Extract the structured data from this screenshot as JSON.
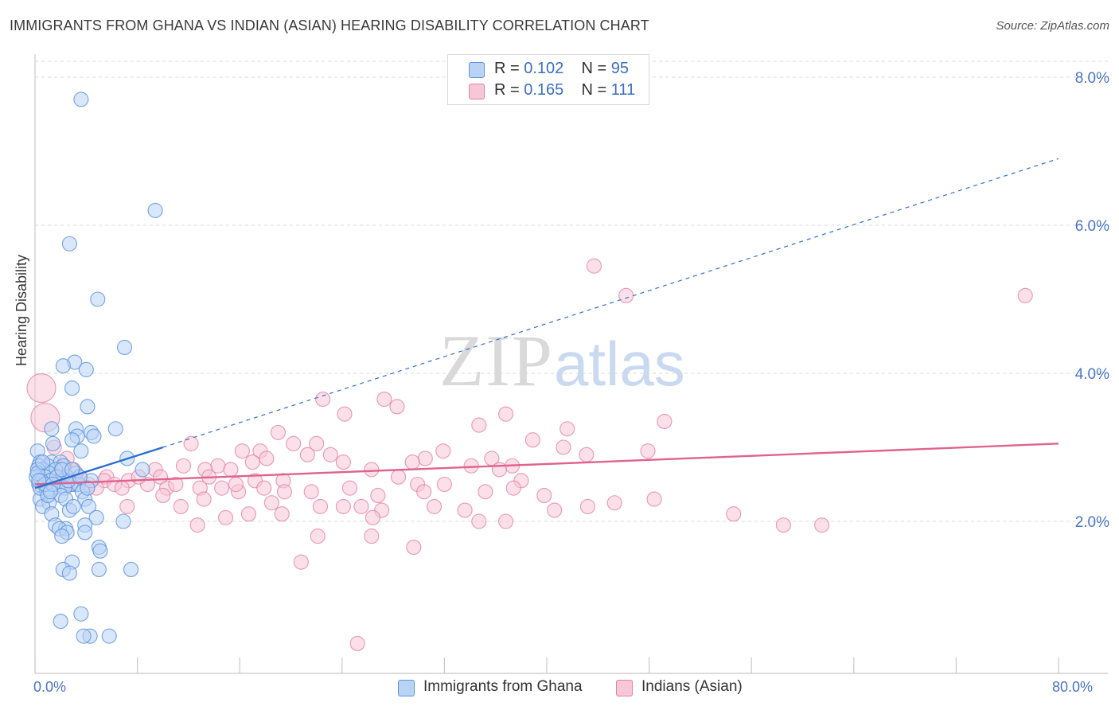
{
  "title": "IMMIGRANTS FROM GHANA VS INDIAN (ASIAN) HEARING DISABILITY CORRELATION CHART",
  "source": "Source: ZipAtlas.com",
  "watermark": {
    "zip": "ZIP",
    "atlas": "atlas"
  },
  "legend_top": [
    {
      "r_label": "R =",
      "r_value": "0.102",
      "n_label": "N =",
      "n_value": "95"
    },
    {
      "r_label": "R =",
      "r_value": "0.165",
      "n_label": "N =",
      "n_value": "111"
    }
  ],
  "colors": {
    "blue_fill": "#b9d3f5",
    "blue_stroke": "#5d93de",
    "pink_fill": "#f7c6d7",
    "pink_stroke": "#e47fa3",
    "blue_line": "#2f6fcf",
    "pink_line": "#e0628f",
    "accent_text": "#4a74c4"
  },
  "chart_data": {
    "type": "scatter",
    "title": "IMMIGRANTS FROM GHANA VS INDIAN (ASIAN) HEARING DISABILITY CORRELATION CHART",
    "xlabel": "",
    "ylabel": "Hearing Disability",
    "xlim": [
      0,
      80
    ],
    "ylim": [
      0,
      8.3
    ],
    "x_tick_labels": [
      "0.0%",
      "80.0%"
    ],
    "y_ticks": [
      2,
      4,
      6,
      8
    ],
    "y_tick_labels": [
      "2.0%",
      "4.0%",
      "6.0%",
      "8.0%"
    ],
    "grid": true,
    "legend_position": "top-center",
    "series": [
      {
        "name": "Immigrants from Ghana",
        "r": 0.102,
        "n": 95,
        "trend_solid": [
          [
            0,
            2.45
          ],
          [
            10,
            3.0
          ]
        ],
        "trend_dashed": [
          [
            10,
            3.0
          ],
          [
            80,
            6.9
          ]
        ],
        "points": [
          [
            3.6,
            7.7
          ],
          [
            9.4,
            6.2
          ],
          [
            2.7,
            5.75
          ],
          [
            4.9,
            5.0
          ],
          [
            7.0,
            4.35
          ],
          [
            3.1,
            4.15
          ],
          [
            2.2,
            4.1
          ],
          [
            4.0,
            4.05
          ],
          [
            2.9,
            3.8
          ],
          [
            4.1,
            3.55
          ],
          [
            6.3,
            3.25
          ],
          [
            3.2,
            3.25
          ],
          [
            1.3,
            3.25
          ],
          [
            4.4,
            3.2
          ],
          [
            3.3,
            3.15
          ],
          [
            4.6,
            3.15
          ],
          [
            2.9,
            3.1
          ],
          [
            1.4,
            3.05
          ],
          [
            0.2,
            2.95
          ],
          [
            3.6,
            2.95
          ],
          [
            7.2,
            2.85
          ],
          [
            0.4,
            2.8
          ],
          [
            1.3,
            2.8
          ],
          [
            2.0,
            2.8
          ],
          [
            1.0,
            2.75
          ],
          [
            0.3,
            2.75
          ],
          [
            2.2,
            2.75
          ],
          [
            1.6,
            2.7
          ],
          [
            0.6,
            2.7
          ],
          [
            0.2,
            2.7
          ],
          [
            8.4,
            2.7
          ],
          [
            1.1,
            2.65
          ],
          [
            3.2,
            2.65
          ],
          [
            0.8,
            2.6
          ],
          [
            2.5,
            2.6
          ],
          [
            0.1,
            2.6
          ],
          [
            1.9,
            2.55
          ],
          [
            4.4,
            2.55
          ],
          [
            1.2,
            2.55
          ],
          [
            0.5,
            2.55
          ],
          [
            3.1,
            2.5
          ],
          [
            0.3,
            2.5
          ],
          [
            1.8,
            2.5
          ],
          [
            2.8,
            2.5
          ],
          [
            3.4,
            2.5
          ],
          [
            0.7,
            2.5
          ],
          [
            1.5,
            2.45
          ],
          [
            2.3,
            2.45
          ],
          [
            0.9,
            2.4
          ],
          [
            3.7,
            2.4
          ],
          [
            2.0,
            2.35
          ],
          [
            0.4,
            2.3
          ],
          [
            2.4,
            2.3
          ],
          [
            3.9,
            2.3
          ],
          [
            1.1,
            2.25
          ],
          [
            4.2,
            2.2
          ],
          [
            0.6,
            2.2
          ],
          [
            2.7,
            2.15
          ],
          [
            1.3,
            2.1
          ],
          [
            4.8,
            2.05
          ],
          [
            6.9,
            2.0
          ],
          [
            1.6,
            1.95
          ],
          [
            3.9,
            1.95
          ],
          [
            2.4,
            1.9
          ],
          [
            1.9,
            1.9
          ],
          [
            2.5,
            1.85
          ],
          [
            3.9,
            1.85
          ],
          [
            2.1,
            1.8
          ],
          [
            5.0,
            1.65
          ],
          [
            5.1,
            1.6
          ],
          [
            2.9,
            1.45
          ],
          [
            2.2,
            1.35
          ],
          [
            5.0,
            1.35
          ],
          [
            7.5,
            1.35
          ],
          [
            2.7,
            1.3
          ],
          [
            3.6,
            0.75
          ],
          [
            2.0,
            0.65
          ],
          [
            4.3,
            0.45
          ],
          [
            3.8,
            0.45
          ],
          [
            5.8,
            0.45
          ],
          [
            0.2,
            2.65
          ],
          [
            1.7,
            2.6
          ],
          [
            0.4,
            2.45
          ],
          [
            2.6,
            2.55
          ],
          [
            3.0,
            2.2
          ],
          [
            1.0,
            2.35
          ],
          [
            0.8,
            2.5
          ],
          [
            2.1,
            2.7
          ],
          [
            1.4,
            2.5
          ],
          [
            0.6,
            2.8
          ],
          [
            3.5,
            2.6
          ],
          [
            2.9,
            2.7
          ],
          [
            1.2,
            2.4
          ],
          [
            0.3,
            2.55
          ],
          [
            4.1,
            2.45
          ]
        ]
      },
      {
        "name": "Indians (Asian)",
        "r": 0.165,
        "n": 111,
        "trend_solid": [
          [
            0,
            2.5
          ],
          [
            80,
            3.05
          ]
        ],
        "points": [
          [
            0.5,
            3.8
          ],
          [
            0.8,
            3.4
          ],
          [
            1.5,
            3.0
          ],
          [
            43.7,
            5.45
          ],
          [
            46.2,
            5.05
          ],
          [
            77.4,
            5.05
          ],
          [
            22.5,
            3.65
          ],
          [
            27.3,
            3.65
          ],
          [
            28.3,
            3.55
          ],
          [
            24.2,
            3.45
          ],
          [
            36.8,
            3.45
          ],
          [
            49.2,
            3.35
          ],
          [
            19.0,
            3.2
          ],
          [
            34.7,
            3.3
          ],
          [
            41.6,
            3.25
          ],
          [
            12.2,
            3.05
          ],
          [
            20.2,
            3.05
          ],
          [
            22.0,
            3.05
          ],
          [
            38.9,
            3.1
          ],
          [
            41.3,
            3.0
          ],
          [
            16.2,
            2.95
          ],
          [
            17.6,
            2.95
          ],
          [
            31.9,
            2.95
          ],
          [
            43.1,
            2.9
          ],
          [
            47.9,
            2.95
          ],
          [
            23.1,
            2.9
          ],
          [
            21.3,
            2.9
          ],
          [
            18.1,
            2.85
          ],
          [
            30.5,
            2.85
          ],
          [
            35.7,
            2.85
          ],
          [
            14.3,
            2.75
          ],
          [
            17.0,
            2.8
          ],
          [
            24.1,
            2.8
          ],
          [
            29.5,
            2.8
          ],
          [
            34.1,
            2.75
          ],
          [
            37.3,
            2.75
          ],
          [
            11.6,
            2.75
          ],
          [
            13.3,
            2.7
          ],
          [
            9.4,
            2.7
          ],
          [
            3.0,
            2.7
          ],
          [
            2.3,
            2.75
          ],
          [
            15.3,
            2.7
          ],
          [
            26.3,
            2.7
          ],
          [
            36.3,
            2.7
          ],
          [
            5.6,
            2.6
          ],
          [
            9.8,
            2.6
          ],
          [
            13.6,
            2.6
          ],
          [
            17.2,
            2.55
          ],
          [
            19.4,
            2.55
          ],
          [
            28.4,
            2.6
          ],
          [
            29.9,
            2.5
          ],
          [
            32.0,
            2.5
          ],
          [
            38.0,
            2.55
          ],
          [
            3.5,
            2.6
          ],
          [
            4.2,
            2.5
          ],
          [
            5.4,
            2.55
          ],
          [
            6.2,
            2.5
          ],
          [
            7.3,
            2.55
          ],
          [
            8.8,
            2.5
          ],
          [
            10.3,
            2.45
          ],
          [
            11.0,
            2.5
          ],
          [
            12.9,
            2.45
          ],
          [
            14.6,
            2.45
          ],
          [
            15.9,
            2.4
          ],
          [
            17.9,
            2.45
          ],
          [
            19.5,
            2.4
          ],
          [
            21.6,
            2.4
          ],
          [
            24.6,
            2.45
          ],
          [
            26.8,
            2.35
          ],
          [
            30.4,
            2.4
          ],
          [
            35.2,
            2.4
          ],
          [
            37.4,
            2.45
          ],
          [
            39.8,
            2.35
          ],
          [
            45.3,
            2.25
          ],
          [
            48.4,
            2.3
          ],
          [
            10.0,
            2.35
          ],
          [
            13.2,
            2.3
          ],
          [
            11.4,
            2.2
          ],
          [
            18.5,
            2.25
          ],
          [
            22.3,
            2.2
          ],
          [
            24.1,
            2.2
          ],
          [
            25.5,
            2.2
          ],
          [
            27.1,
            2.15
          ],
          [
            31.2,
            2.2
          ],
          [
            33.6,
            2.15
          ],
          [
            40.6,
            2.15
          ],
          [
            43.2,
            2.2
          ],
          [
            54.6,
            2.1
          ],
          [
            7.2,
            2.2
          ],
          [
            14.9,
            2.05
          ],
          [
            16.7,
            2.1
          ],
          [
            19.3,
            2.1
          ],
          [
            26.4,
            2.05
          ],
          [
            34.7,
            2.0
          ],
          [
            36.8,
            2.0
          ],
          [
            12.7,
            1.95
          ],
          [
            58.5,
            1.95
          ],
          [
            61.5,
            1.95
          ],
          [
            22.1,
            1.8
          ],
          [
            26.3,
            1.8
          ],
          [
            29.6,
            1.65
          ],
          [
            20.8,
            1.45
          ],
          [
            25.2,
            0.35
          ],
          [
            2.8,
            2.5
          ],
          [
            4.8,
            2.45
          ],
          [
            6.8,
            2.45
          ],
          [
            1.9,
            2.65
          ],
          [
            2.5,
            2.85
          ],
          [
            3.2,
            2.55
          ],
          [
            8.1,
            2.6
          ],
          [
            15.7,
            2.5
          ]
        ]
      }
    ]
  },
  "legend_bottom": [
    "Immigrants from Ghana",
    "Indians (Asian)"
  ]
}
